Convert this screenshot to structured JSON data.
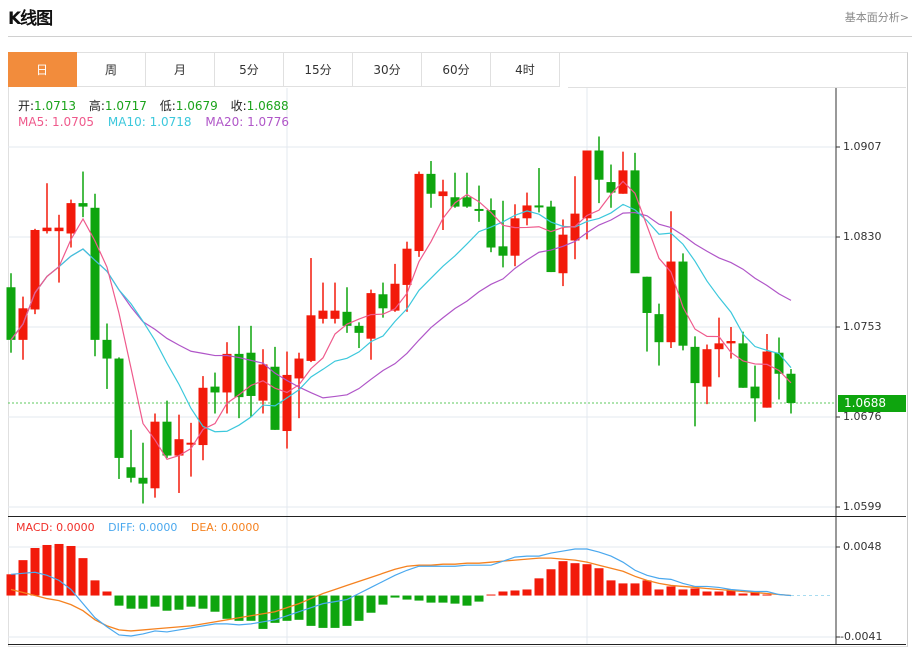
{
  "header": {
    "title": "K线图",
    "more_link": "基本面分析>"
  },
  "tabs": [
    {
      "label": "日",
      "active": true
    },
    {
      "label": "周"
    },
    {
      "label": "月"
    },
    {
      "label": "5分"
    },
    {
      "label": "15分"
    },
    {
      "label": "30分"
    },
    {
      "label": "60分"
    },
    {
      "label": "4时"
    }
  ],
  "info": {
    "open_label": "开:",
    "open": "1.0713",
    "high_label": "高:",
    "high": "1.0717",
    "low_label": "低:",
    "low": "1.0679",
    "close_label": "收:",
    "close": "1.0688",
    "ma5": "MA5: 1.0705",
    "ma10": "MA10: 1.0718",
    "ma20": "MA20: 1.0776"
  },
  "macd_info": {
    "macd": "MACD: 0.0000",
    "diff": "DIFF: 0.0000",
    "dea": "DEA: 0.0000"
  },
  "colors": {
    "up": "#f21a0a",
    "down": "#0ea50e",
    "ma5": "#ef5a8c",
    "ma10": "#3cc8dc",
    "ma20": "#b056c8",
    "diff": "#4aa8ee",
    "dea": "#f58220",
    "accent": "#f28c3c"
  },
  "chart_data": {
    "type": "candlestick",
    "price_axis": {
      "ticks": [
        "1.0907",
        "1.0830",
        "1.0753",
        "1.0676",
        "1.0599"
      ],
      "range": [
        1.0599,
        1.0907
      ]
    },
    "current_price": "1.0688",
    "ohlc": [
      [
        1.0787,
        1.0799,
        1.0731,
        1.0742
      ],
      [
        1.0742,
        1.0779,
        1.0725,
        1.0769
      ],
      [
        1.0768,
        1.0837,
        1.0764,
        1.0836
      ],
      [
        1.0835,
        1.0876,
        1.0833,
        1.0838
      ],
      [
        1.0835,
        1.0849,
        1.0791,
        1.0838
      ],
      [
        1.0833,
        1.0862,
        1.0821,
        1.0859
      ],
      [
        1.0859,
        1.0886,
        1.0847,
        1.0856
      ],
      [
        1.0855,
        1.0867,
        1.0728,
        1.0742
      ],
      [
        1.0742,
        1.0756,
        1.07,
        1.0726
      ],
      [
        1.0726,
        1.0727,
        1.0623,
        1.0641
      ],
      [
        1.0633,
        1.0665,
        1.062,
        1.0624
      ],
      [
        1.0624,
        1.0654,
        1.0602,
        1.0619
      ],
      [
        1.0615,
        1.0679,
        1.0607,
        1.0672
      ],
      [
        1.0672,
        1.069,
        1.0641,
        1.0643
      ],
      [
        1.0643,
        1.0678,
        1.0611,
        1.0657
      ],
      [
        1.0653,
        1.0671,
        1.0625,
        1.0654
      ],
      [
        1.0652,
        1.0711,
        1.0639,
        1.0701
      ],
      [
        1.0702,
        1.0714,
        1.0679,
        1.0697
      ],
      [
        1.0697,
        1.074,
        1.0679,
        1.073
      ],
      [
        1.073,
        1.0754,
        1.0675,
        1.0693
      ],
      [
        1.0731,
        1.0754,
        1.0676,
        1.0694
      ],
      [
        1.069,
        1.0734,
        1.0679,
        1.0721
      ],
      [
        1.0719,
        1.0736,
        1.0665,
        1.0665
      ],
      [
        1.0664,
        1.0732,
        1.0649,
        1.0712
      ],
      [
        1.0709,
        1.0731,
        1.0675,
        1.0726
      ],
      [
        1.0724,
        1.0812,
        1.0723,
        1.0763
      ],
      [
        1.076,
        1.0791,
        1.0756,
        1.0767
      ],
      [
        1.076,
        1.0791,
        1.0756,
        1.0767
      ],
      [
        1.0766,
        1.0787,
        1.0748,
        1.0754
      ],
      [
        1.0754,
        1.0757,
        1.0735,
        1.0748
      ],
      [
        1.0743,
        1.0785,
        1.0725,
        1.0782
      ],
      [
        1.0781,
        1.0791,
        1.0761,
        1.0769
      ],
      [
        1.0767,
        1.0807,
        1.0766,
        1.079
      ],
      [
        1.0789,
        1.0826,
        1.0766,
        1.082
      ],
      [
        1.0818,
        1.0886,
        1.0813,
        1.0884
      ],
      [
        1.0884,
        1.0895,
        1.0855,
        1.0867
      ],
      [
        1.0865,
        1.0879,
        1.0836,
        1.0869
      ],
      [
        1.0864,
        1.0885,
        1.0855,
        1.0856
      ],
      [
        1.0864,
        1.0885,
        1.0855,
        1.0856
      ],
      [
        1.0854,
        1.0874,
        1.0843,
        1.0853
      ],
      [
        1.0853,
        1.0863,
        1.0817,
        1.0821
      ],
      [
        1.0822,
        1.0861,
        1.0804,
        1.0814
      ],
      [
        1.0814,
        1.0858,
        1.0805,
        1.0846
      ],
      [
        1.0846,
        1.0868,
        1.084,
        1.0857
      ],
      [
        1.0857,
        1.0889,
        1.0851,
        1.0856
      ],
      [
        1.0856,
        1.0861,
        1.08,
        1.08
      ],
      [
        1.0799,
        1.0845,
        1.0788,
        1.0832
      ],
      [
        1.0827,
        1.0882,
        1.0811,
        1.085
      ],
      [
        1.0846,
        1.0904,
        1.0828,
        1.0904
      ],
      [
        1.0904,
        1.0916,
        1.0859,
        1.0879
      ],
      [
        1.0877,
        1.0892,
        1.0855,
        1.0868
      ],
      [
        1.0867,
        1.0903,
        1.0867,
        1.0887
      ],
      [
        1.0887,
        1.0902,
        1.0801,
        1.0799
      ],
      [
        1.0796,
        1.0796,
        1.0732,
        1.0765
      ],
      [
        1.0764,
        1.0773,
        1.072,
        1.074
      ],
      [
        1.074,
        1.0852,
        1.0735,
        1.0809
      ],
      [
        1.0809,
        1.0816,
        1.0733,
        1.0737
      ],
      [
        1.0736,
        1.0745,
        1.0668,
        1.0705
      ],
      [
        1.0702,
        1.0738,
        1.0687,
        1.0734
      ],
      [
        1.0734,
        1.0761,
        1.071,
        1.0739
      ],
      [
        1.0739,
        1.0753,
        1.0726,
        1.0741
      ],
      [
        1.0739,
        1.0749,
        1.0701,
        1.0701
      ],
      [
        1.0702,
        1.072,
        1.0672,
        1.0692
      ],
      [
        1.0684,
        1.0747,
        1.0684,
        1.0732
      ],
      [
        1.0731,
        1.0744,
        1.0691,
        1.0713
      ],
      [
        1.0713,
        1.0717,
        1.0679,
        1.0688
      ]
    ],
    "macd_axis": {
      "ticks": [
        "0.0048",
        "-0.0041"
      ],
      "range": [
        -0.0041,
        0.0048
      ]
    },
    "macd": [
      0.0021,
      0.0035,
      0.0047,
      0.005,
      0.0051,
      0.0049,
      0.0037,
      0.0015,
      0.0004,
      -0.001,
      -0.0013,
      -0.0013,
      -0.0011,
      -0.0015,
      -0.0014,
      -0.0011,
      -0.0013,
      -0.0016,
      -0.0023,
      -0.0025,
      -0.0025,
      -0.0033,
      -0.0027,
      -0.0025,
      -0.0024,
      -0.003,
      -0.0032,
      -0.0032,
      -0.003,
      -0.0025,
      -0.0017,
      -0.0009,
      -0.0002,
      -0.0004,
      -0.0005,
      -0.0007,
      -0.0007,
      -0.0008,
      -0.001,
      -0.0006,
      0.0001,
      0.0004,
      0.0005,
      0.0006,
      0.0017,
      0.0026,
      0.0034,
      0.0032,
      0.0031,
      0.0027,
      0.0015,
      0.0012,
      0.0012,
      0.0015,
      0.0006,
      0.0009,
      0.0006,
      0.0007,
      0.0004,
      0.0004,
      0.0006,
      0.0002,
      0.0004,
      0.0001,
      0.0,
      0.0
    ],
    "diff": [
      0.0021,
      0.0022,
      0.0023,
      0.002,
      0.0015,
      0.0006,
      -0.0008,
      -0.0022,
      -0.0031,
      -0.0039,
      -0.004,
      -0.0038,
      -0.0035,
      -0.0036,
      -0.0034,
      -0.0032,
      -0.003,
      -0.0028,
      -0.0028,
      -0.0029,
      -0.0028,
      -0.0026,
      -0.0024,
      -0.002,
      -0.0016,
      -0.0012,
      -0.0008,
      -0.0006,
      -0.0004,
      0.0002,
      0.0008,
      0.0014,
      0.002,
      0.0025,
      0.0029,
      0.0029,
      0.0029,
      0.0029,
      0.003,
      0.003,
      0.003,
      0.0034,
      0.0038,
      0.0039,
      0.0039,
      0.0042,
      0.0044,
      0.0046,
      0.0046,
      0.0043,
      0.0039,
      0.0033,
      0.0025,
      0.002,
      0.0017,
      0.0016,
      0.0012,
      0.0009,
      0.0009,
      0.0008,
      0.0006,
      0.0005,
      0.0004,
      0.0004,
      0.0001,
      0.0
    ],
    "dea": [
      0.0006,
      0.0003,
      0.0,
      -0.0003,
      -0.0005,
      -0.0009,
      -0.0015,
      -0.0024,
      -0.003,
      -0.0034,
      -0.0035,
      -0.0034,
      -0.0033,
      -0.0032,
      -0.0031,
      -0.003,
      -0.0028,
      -0.0026,
      -0.0024,
      -0.0022,
      -0.002,
      -0.0018,
      -0.0016,
      -0.0012,
      -0.0008,
      -0.0003,
      0.0002,
      0.0006,
      0.001,
      0.0014,
      0.0018,
      0.0022,
      0.0026,
      0.0029,
      0.003,
      0.003,
      0.0031,
      0.0031,
      0.0032,
      0.0032,
      0.0033,
      0.0034,
      0.0035,
      0.0036,
      0.0037,
      0.0037,
      0.0036,
      0.0035,
      0.0033,
      0.003,
      0.0027,
      0.0024,
      0.0019,
      0.0015,
      0.0012,
      0.001,
      0.0009,
      0.0008,
      0.0007,
      0.0006,
      0.0005,
      0.0004,
      0.0003,
      0.0002,
      0.0001,
      0.0
    ]
  }
}
